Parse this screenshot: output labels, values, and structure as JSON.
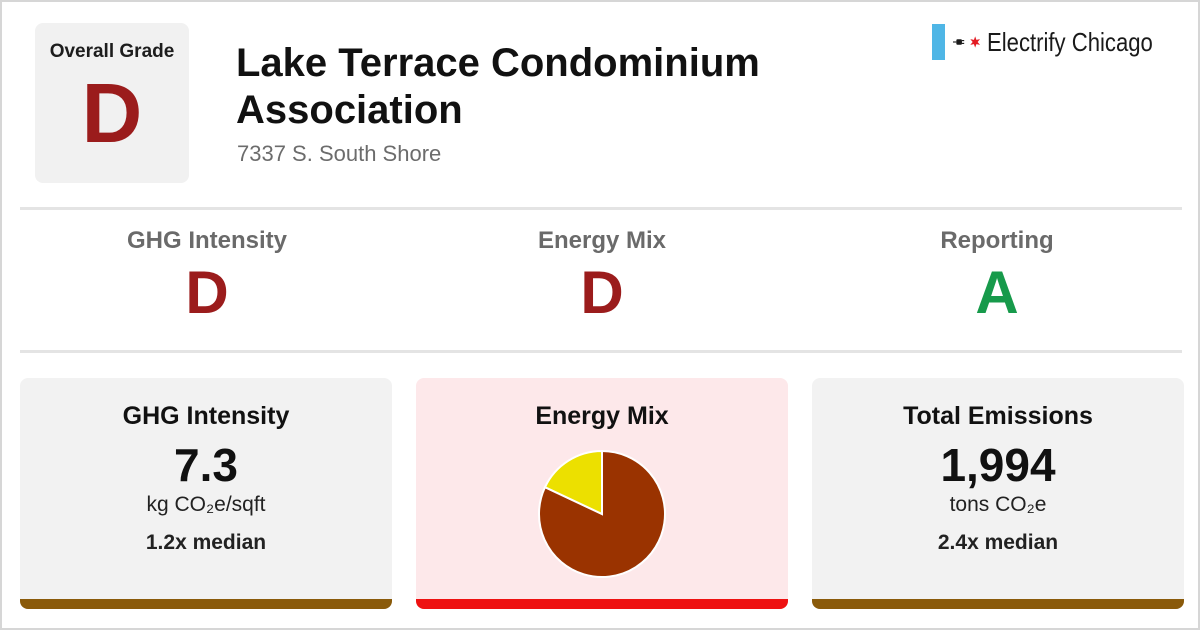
{
  "header": {
    "overall_label": "Overall Grade",
    "overall_grade": "D",
    "title": "Lake Terrace Condominium Association",
    "address": "7337 S. South Shore",
    "brand": "Electrify Chicago"
  },
  "subgrades": [
    {
      "label": "GHG Intensity",
      "grade": "D",
      "color": "#9b1c1c"
    },
    {
      "label": "Energy Mix",
      "grade": "D",
      "color": "#9b1c1c"
    },
    {
      "label": "Reporting",
      "grade": "A",
      "color": "#179a4b"
    }
  ],
  "cards": {
    "ghg": {
      "title": "GHG Intensity",
      "value": "7.3",
      "unit": "kg CO₂e/sqft",
      "median": "1.2x median",
      "bar_color": "#8a5a0a"
    },
    "energy": {
      "title": "Energy Mix",
      "bg": "#fde8ea",
      "bar_color": "#ee1111"
    },
    "total": {
      "title": "Total Emissions",
      "value": "1,994",
      "unit": "tons CO₂e",
      "median": "2.4x median",
      "bar_color": "#8a5a0a"
    }
  },
  "colors": {
    "grade_red": "#9b1c1c",
    "grade_green": "#179a4b",
    "flag_blue": "#4fb6e6",
    "star_red": "#e31b23"
  },
  "chart_data": {
    "type": "pie",
    "slices": [
      {
        "value": 82,
        "color": "#9a3300"
      },
      {
        "value": 18,
        "color": "#ece000"
      }
    ]
  }
}
